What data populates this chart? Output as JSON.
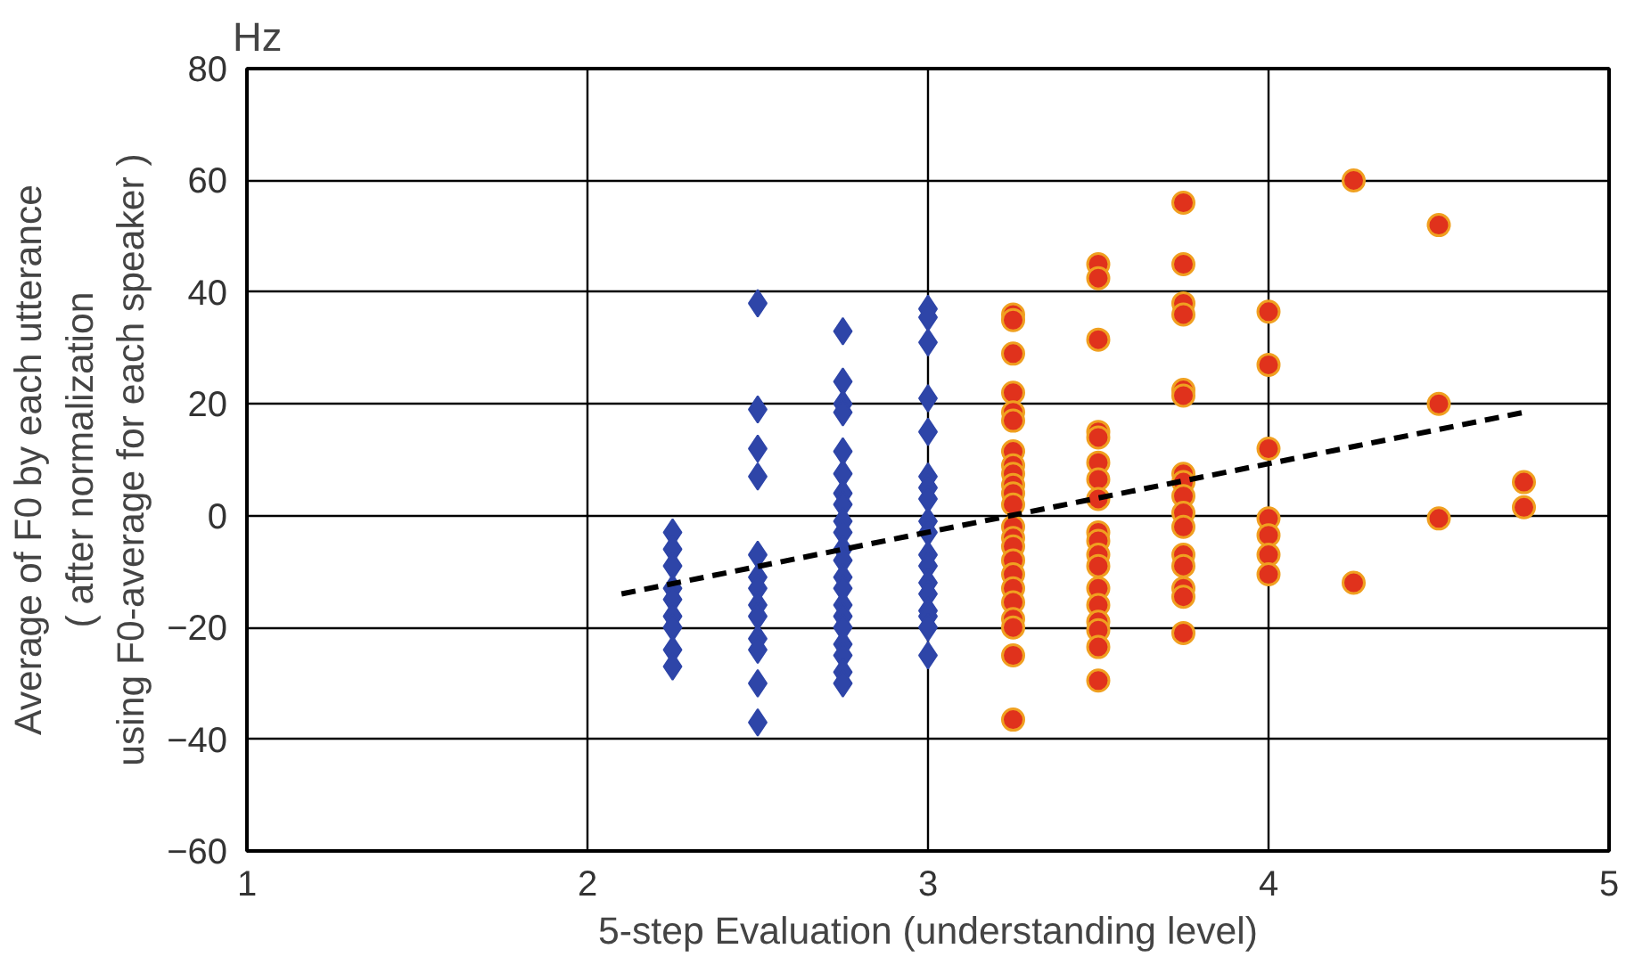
{
  "chart_data": {
    "type": "scatter",
    "xlabel": "5-step Evaluation (understanding level)",
    "ylabel": "Average of F0 by each utterance\n( after normalization\nusing F0-average for each speaker )",
    "annotations": [
      "Hz"
    ],
    "xlim": [
      1,
      5
    ],
    "xticks": [
      1,
      2,
      3,
      4,
      5
    ],
    "ylim": [
      -60,
      80
    ],
    "yticks": [
      -60,
      -40,
      -20,
      0,
      20,
      40,
      60,
      80
    ],
    "grid": true,
    "series": [
      {
        "color": "#2e45a8",
        "marker": "diamond",
        "x": [
          2.25,
          2.25,
          2.25,
          2.25,
          2.25,
          2.25,
          2.25,
          2.25,
          2.25,
          2.5,
          2.5,
          2.5,
          2.5,
          2.5,
          2.5,
          2.5,
          2.5,
          2.5,
          2.5,
          2.5,
          2.5,
          2.5,
          2.75,
          2.75,
          2.75,
          2.75,
          2.75,
          2.75,
          2.75,
          2.75,
          2.75,
          2.75,
          2.75,
          2.75,
          2.75,
          2.75,
          2.75,
          2.75,
          2.75,
          2.75,
          2.75,
          2.75,
          2.75,
          3,
          3,
          3,
          3,
          3,
          3,
          3,
          3,
          3,
          3,
          3,
          3,
          3,
          3,
          3,
          3,
          3,
          3
        ],
        "values": [
          -3,
          -6,
          -9,
          -13,
          -15,
          -18,
          -20,
          -24,
          -27,
          38,
          19,
          12,
          7,
          -7,
          -11,
          -13,
          -16,
          -18,
          -22,
          -24,
          -30,
          -37,
          33,
          24,
          20,
          18.5,
          11.5,
          7.5,
          4,
          2,
          -1,
          -3,
          -6,
          -8,
          -11,
          -13,
          -16,
          -18,
          -20,
          -23,
          -25,
          -28,
          -30,
          37,
          35.5,
          31,
          21,
          15,
          7,
          5,
          3,
          -1,
          -3,
          -7,
          -9,
          -12,
          -14,
          -17,
          -18,
          -20,
          -25
        ]
      },
      {
        "color": "#e0321c",
        "marker": "circle",
        "x": [
          3.25,
          3.25,
          3.25,
          3.25,
          3.25,
          3.25,
          3.25,
          3.25,
          3.25,
          3.25,
          3.25,
          3.25,
          3.25,
          3.25,
          3.25,
          3.25,
          3.25,
          3.25,
          3.25,
          3.25,
          3.25,
          3.25,
          3.25,
          3.5,
          3.5,
          3.5,
          3.5,
          3.5,
          3.5,
          3.5,
          3.5,
          3.5,
          3.5,
          3.5,
          3.5,
          3.5,
          3.5,
          3.5,
          3.5,
          3.5,
          3.5,
          3.75,
          3.75,
          3.75,
          3.75,
          3.75,
          3.75,
          3.75,
          3.75,
          3.75,
          3.75,
          3.75,
          3.75,
          3.75,
          3.75,
          3.75,
          3.75,
          4,
          4,
          4,
          4,
          4,
          4,
          4,
          4.25,
          4.25,
          4.5,
          4.5,
          4.5,
          4.75,
          4.75
        ],
        "values": [
          36,
          35,
          29,
          22,
          18.5,
          17,
          11.5,
          9,
          7.5,
          5.5,
          4,
          2,
          -2,
          -4,
          -5.5,
          -8,
          -10.5,
          -13,
          -15.5,
          -18.5,
          -20,
          -25,
          -36.5,
          45,
          42.5,
          31.5,
          15,
          14,
          9.5,
          6.5,
          3,
          -3,
          -4.5,
          -7,
          -9,
          -13,
          -16,
          -19,
          -20.5,
          -23.5,
          -29.5,
          56,
          45,
          38,
          36,
          22.5,
          21.5,
          7.5,
          6,
          3.5,
          0.5,
          -2,
          -7,
          -9,
          -13,
          -14.5,
          -21,
          36.5,
          27,
          12,
          -0.5,
          -3.5,
          -7,
          -10.5,
          60,
          -12,
          52,
          20,
          -0.5,
          6,
          1.5
        ]
      },
      {
        "type": "line",
        "color": "#000000",
        "line_style": "dashed",
        "x": [
          2.1,
          4.75
        ],
        "values": [
          -14,
          18.5
        ]
      }
    ]
  }
}
